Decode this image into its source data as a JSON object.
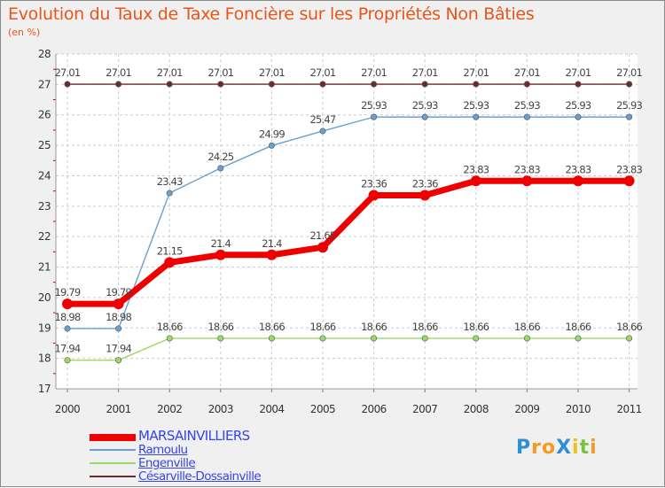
{
  "title": "Evolution du Taux de Taxe Foncière sur les Propriétés Non Bâties",
  "subtitle": "(en %)",
  "logo": {
    "letters": [
      {
        "ch": "P",
        "color": "#2f8fd6"
      },
      {
        "ch": "r",
        "color": "#f59a22"
      },
      {
        "ch": "o",
        "color": "#f59a22"
      },
      {
        "ch": "X",
        "color": "#2f8fd6"
      },
      {
        "ch": "i",
        "color": "#f0c020"
      },
      {
        "ch": "t",
        "color": "#7cc242"
      },
      {
        "ch": "i",
        "color": "#f59a22"
      }
    ]
  },
  "chart_data": {
    "type": "line",
    "title": "Evolution du Taux de Taxe Foncière sur les Propriétés Non Bâties",
    "ylabel": "(en %)",
    "xlabel": "",
    "ylim": [
      17,
      28
    ],
    "yticks": [
      "17",
      "18",
      "19",
      "20",
      "21",
      "22",
      "23",
      "24",
      "25",
      "26",
      "27",
      "28"
    ],
    "categories": [
      "2000",
      "2001",
      "2002",
      "2003",
      "2004",
      "2005",
      "2006",
      "2007",
      "2008",
      "2009",
      "2010",
      "2011"
    ],
    "grid": true,
    "legend_position": "bottom-left",
    "series": [
      {
        "name": "MARSAINVILLIERS",
        "color": "#ee0000",
        "values": [
          19.79,
          19.79,
          21.15,
          21.4,
          21.4,
          21.65,
          23.36,
          23.36,
          23.83,
          23.83,
          23.83,
          23.83
        ],
        "labels": [
          "19.79",
          "19.79",
          "21.15",
          "21.4",
          "21.4",
          "21.65",
          "23.36",
          "23.36",
          "23.83",
          "23.83",
          "23.83",
          "23.83"
        ]
      },
      {
        "name": "Ramoulu",
        "color": "#6aa0cf",
        "values": [
          18.98,
          18.98,
          23.43,
          24.25,
          24.99,
          25.47,
          25.93,
          25.93,
          25.93,
          25.93,
          25.93,
          25.93
        ],
        "labels": [
          "18.98",
          "18.98",
          "23.43",
          "24.25",
          "24.99",
          "25.47",
          "25.93",
          "25.93",
          "25.93",
          "25.93",
          "25.93",
          "25.93"
        ]
      },
      {
        "name": "Engenville",
        "color": "#9bd864",
        "values": [
          17.94,
          17.94,
          18.66,
          18.66,
          18.66,
          18.66,
          18.66,
          18.66,
          18.66,
          18.66,
          18.66,
          18.66
        ],
        "labels": [
          "17.94",
          "17.94",
          "18.66",
          "18.66",
          "18.66",
          "18.66",
          "18.66",
          "18.66",
          "18.66",
          "18.66",
          "18.66",
          "18.66"
        ]
      },
      {
        "name": "Césarville-Dossainville",
        "color": "#6b2c2c",
        "values": [
          27.01,
          27.01,
          27.01,
          27.01,
          27.01,
          27.01,
          27.01,
          27.01,
          27.01,
          27.01,
          27.01,
          27.01
        ],
        "labels": [
          "27.01",
          "27.01",
          "27.01",
          "27.01",
          "27.01",
          "27.01",
          "27.01",
          "27.01",
          "27.01",
          "27.01",
          "27.01",
          "27.01"
        ]
      }
    ]
  }
}
